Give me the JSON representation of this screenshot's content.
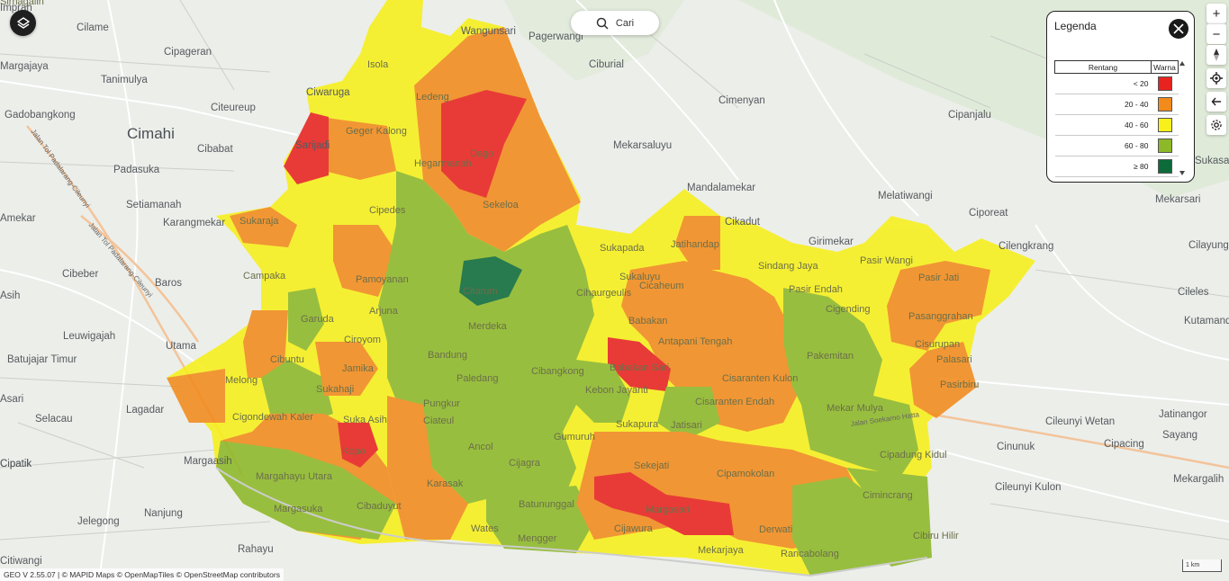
{
  "map": {
    "places": [
      {
        "name": "Cilame"
      },
      {
        "name": "Cipageran"
      },
      {
        "name": "Tanimulya"
      },
      {
        "name": "Gadobangkong"
      },
      {
        "name": "Citeureup"
      },
      {
        "name": "Cimahi",
        "big": true
      },
      {
        "name": "Cibabat"
      },
      {
        "name": "Padasuka"
      },
      {
        "name": "Setiamanah"
      },
      {
        "name": "Karangmekar"
      },
      {
        "name": "Cibeber"
      },
      {
        "name": "Baros"
      },
      {
        "name": "Leuwigajah"
      },
      {
        "name": "Utama"
      },
      {
        "name": "Batujajar Timur"
      },
      {
        "name": "Lagadar"
      },
      {
        "name": "Selacau"
      },
      {
        "name": "Margaasih"
      },
      {
        "name": "Cipatik"
      },
      {
        "name": "Nanjung"
      },
      {
        "name": "Jelegong"
      },
      {
        "name": "Rahayu"
      },
      {
        "name": "Wangunsari"
      },
      {
        "name": "Pagerwangi"
      },
      {
        "name": "Ciburial"
      },
      {
        "name": "Cimenyan"
      },
      {
        "name": "Mekarsaluyu"
      },
      {
        "name": "Mandalamekar"
      },
      {
        "name": "Cipanjalu"
      },
      {
        "name": "Melatiwangi"
      },
      {
        "name": "Ciporeat"
      },
      {
        "name": "Girimekar"
      },
      {
        "name": "Cikadut"
      },
      {
        "name": "Cilengkrang"
      },
      {
        "name": "Cilayung"
      },
      {
        "name": "Cileles"
      },
      {
        "name": "Kutamandiri"
      },
      {
        "name": "Mekarsari"
      },
      {
        "name": "Sukasari"
      },
      {
        "name": "Cileunyi Wetan"
      },
      {
        "name": "Jatinangor"
      },
      {
        "name": "Sayang"
      },
      {
        "name": "Cinunuk"
      },
      {
        "name": "Cipacing"
      },
      {
        "name": "Mekargalih"
      },
      {
        "name": "Cileunyi Kulon"
      },
      {
        "name": "Sarijadi"
      },
      {
        "name": "Ciwaruga"
      },
      {
        "name": "Margajaya"
      },
      {
        "name": "Imprah"
      },
      {
        "name": "Citiwangi"
      },
      {
        "name": "Asih"
      },
      {
        "name": "Amekar"
      },
      {
        "name": "Asari"
      },
      {
        "name": "Cipatik"
      }
    ],
    "districts": [
      {
        "name": "Isola"
      },
      {
        "name": "Ledeng"
      },
      {
        "name": "Geger Kalong"
      },
      {
        "name": "Hegarmanah"
      },
      {
        "name": "Dago"
      },
      {
        "name": "Sekeloa"
      },
      {
        "name": "Cipedes"
      },
      {
        "name": "Sukaraja"
      },
      {
        "name": "Campaka"
      },
      {
        "name": "Pamoyanan"
      },
      {
        "name": "Citarum"
      },
      {
        "name": "Sukapada"
      },
      {
        "name": "Jatihandap"
      },
      {
        "name": "Sindang Jaya"
      },
      {
        "name": "Pasir Wangi"
      },
      {
        "name": "Pasir Jati"
      },
      {
        "name": "Pasir Endah"
      },
      {
        "name": "Cigending"
      },
      {
        "name": "Sukaluyu"
      },
      {
        "name": "Cihaurgeulis"
      },
      {
        "name": "Cicaheum"
      },
      {
        "name": "Garuda"
      },
      {
        "name": "Arjuna"
      },
      {
        "name": "Merdeka"
      },
      {
        "name": "Bandung",
        "big": true
      },
      {
        "name": "Ciroyom"
      },
      {
        "name": "Cibuntu"
      },
      {
        "name": "Jamika"
      },
      {
        "name": "Sukahaji"
      },
      {
        "name": "Paledang"
      },
      {
        "name": "Babakan Sari"
      },
      {
        "name": "Antapani Tengah"
      },
      {
        "name": "Pasanggrahan"
      },
      {
        "name": "Cisurupan"
      },
      {
        "name": "Palasari"
      },
      {
        "name": "Pasirbiru"
      },
      {
        "name": "Pakemitan"
      },
      {
        "name": "Cisaranten Kulon"
      },
      {
        "name": "Cisaranten Endah"
      },
      {
        "name": "Mekar Mulya"
      },
      {
        "name": "Pungkur"
      },
      {
        "name": "Ciateul"
      },
      {
        "name": "Cibangkong"
      },
      {
        "name": "Kebon Jayanti"
      },
      {
        "name": "Babakan"
      },
      {
        "name": "Melong"
      },
      {
        "name": "Cigondewah Kaler"
      },
      {
        "name": "Suka Asih"
      },
      {
        "name": "Ancol"
      },
      {
        "name": "Gumuruh"
      },
      {
        "name": "Sukapura"
      },
      {
        "name": "Jatisari"
      },
      {
        "name": "Kopo"
      },
      {
        "name": "Cijagra"
      },
      {
        "name": "Sekejati"
      },
      {
        "name": "Cipamokolan"
      },
      {
        "name": "Cipadung Kidul"
      },
      {
        "name": "Margahayu Utara"
      },
      {
        "name": "Karasak"
      },
      {
        "name": "Cibaduyut"
      },
      {
        "name": "Margasuka"
      },
      {
        "name": "Batununggal"
      },
      {
        "name": "Margasari"
      },
      {
        "name": "Cijawura"
      },
      {
        "name": "Cimincrang"
      },
      {
        "name": "Wates"
      },
      {
        "name": "Mengger"
      },
      {
        "name": "Derwati"
      },
      {
        "name": "Mekarjaya"
      },
      {
        "name": "Rancabolang"
      },
      {
        "name": "Cibiru Hilir"
      },
      {
        "name": "Sirnagalih"
      }
    ],
    "road_labels": [
      "Jalan Tol Padalarang-Cileunyi",
      "Jalan Tol Padalarang-Cileunyi",
      "Jalan Soekarno Hatta"
    ]
  },
  "search": {
    "label": "Cari",
    "icon": "search-icon"
  },
  "legend": {
    "title": "Legenda",
    "col_range": "Rentang",
    "col_color": "Warna",
    "rows": [
      {
        "range": "< 20",
        "color": "#e8231f"
      },
      {
        "range": "20 - 40",
        "color": "#f28a1c"
      },
      {
        "range": "40 - 60",
        "color": "#f7f01a"
      },
      {
        "range": "60 - 80",
        "color": "#8db828"
      },
      {
        "range": "≥ 80",
        "color": "#0d6b3a"
      }
    ]
  },
  "controls": {
    "zoom_in": "+",
    "zoom_out": "−"
  },
  "attribution": "GEO V 2.55.07 | © MAPID Maps © OpenMapTiles © OpenStreetMap contributors",
  "scale_label": "1 km",
  "colors": {
    "lt20": "#e8231f",
    "c20_40": "#f28a1c",
    "c40_60": "#f7f01a",
    "c60_80": "#8db828",
    "ge80": "#0d6b3a"
  }
}
